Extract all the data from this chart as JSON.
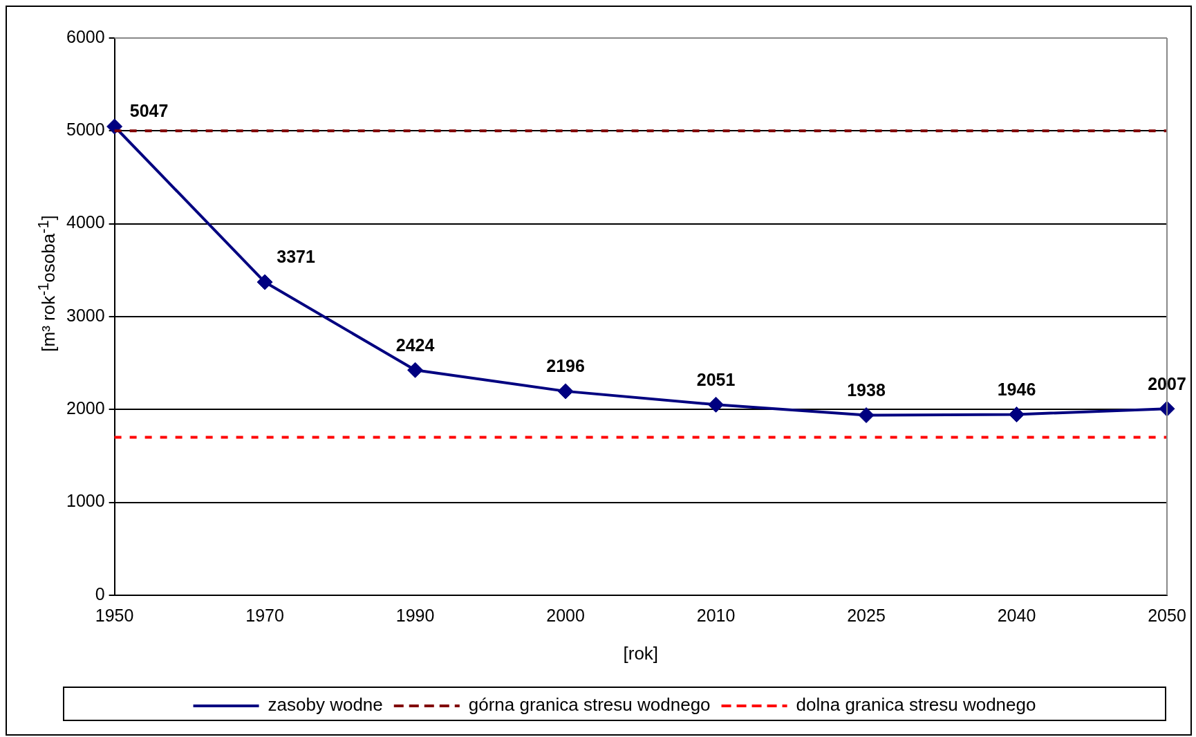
{
  "chart_data": {
    "type": "line",
    "xlabel": "[rok]",
    "ylabel": "[m³ rok$^{-1}$osoba$^{-1}$]",
    "categories": [
      "1950",
      "1970",
      "1990",
      "2000",
      "2010",
      "2025",
      "2040",
      "2050"
    ],
    "series": [
      {
        "name": "zasoby wodne",
        "color": "#000080",
        "values": [
          5047,
          3371,
          2424,
          2196,
          2051,
          1938,
          1946,
          2007
        ],
        "marker": "diamond",
        "line_style": "solid",
        "data_labels": true
      },
      {
        "name": "górna granica stresu wodnego",
        "color": "#800000",
        "values": [
          5000,
          5000,
          5000,
          5000,
          5000,
          5000,
          5000,
          5000
        ],
        "marker": "none",
        "line_style": "dashed"
      },
      {
        "name": "dolna granica stresu wodnego",
        "color": "#ff0000",
        "values": [
          1700,
          1700,
          1700,
          1700,
          1700,
          1700,
          1700,
          1700
        ],
        "marker": "none",
        "line_style": "dashed"
      }
    ],
    "ylim": [
      0,
      6000
    ],
    "yticks": [
      0,
      1000,
      2000,
      3000,
      4000,
      5000,
      6000
    ],
    "grid": "y",
    "legend": "bottom"
  }
}
